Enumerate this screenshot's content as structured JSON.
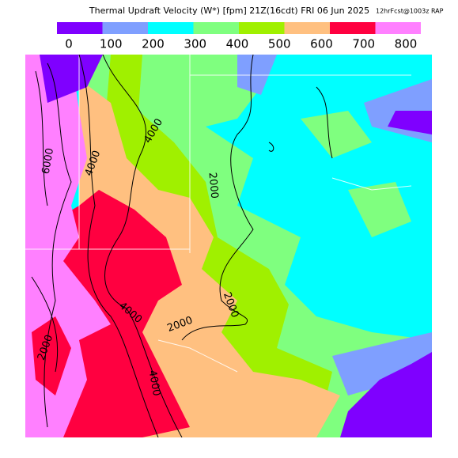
{
  "header": {
    "title": "Thermal Updraft Velocity (W*) [fpm] 21Z(16cdt) FRI 06 Jun 2025",
    "run": "12hrFcst@1003z RAP"
  },
  "legend": {
    "ticks": [
      0,
      100,
      200,
      300,
      400,
      500,
      600,
      700,
      800
    ],
    "colors": [
      "#7f00ff",
      "#7f9fff",
      "#00ffff",
      "#7fff7f",
      "#a0f000",
      "#ffc080",
      "#ff0040",
      "#ff80ff"
    ]
  },
  "contour_labels": [
    "6000",
    "4000",
    "4000",
    "2000",
    "2000",
    "2000",
    "4000",
    "2000",
    "4000"
  ]
}
